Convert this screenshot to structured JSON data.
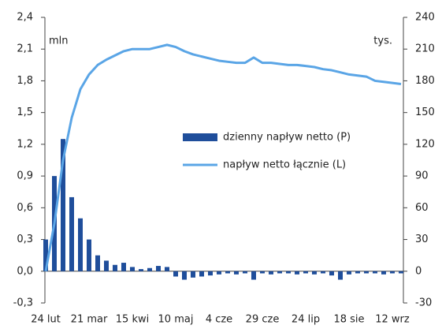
{
  "chart_data": {
    "type": "bar-line",
    "y_label": "mln",
    "y2_label": "tys.",
    "categories": [
      "24 lut",
      null,
      null,
      null,
      null,
      "21 mar",
      null,
      null,
      null,
      null,
      "15 kwi",
      null,
      null,
      null,
      null,
      "10 maj",
      null,
      null,
      null,
      null,
      "4 cze",
      null,
      null,
      null,
      null,
      "29 cze",
      null,
      null,
      null,
      null,
      "24 lip",
      null,
      null,
      null,
      null,
      "18 sie",
      null,
      null,
      null,
      null,
      "12 wrz",
      null
    ],
    "series": [
      {
        "name": "dzienny napływ netto (P)",
        "type": "bar",
        "axis": "y2",
        "color": "#1f4e9b",
        "values": [
          30,
          90,
          125,
          70,
          50,
          30,
          15,
          10,
          6,
          8,
          4,
          2,
          3,
          5,
          4,
          -5,
          -8,
          -6,
          -5,
          -4,
          -3,
          -2,
          -3,
          -2,
          -8,
          -2,
          -3,
          -2,
          -2,
          -3,
          -2,
          -3,
          -2,
          -4,
          -8,
          -3,
          -2,
          -2,
          -2,
          -3,
          -2,
          -2
        ]
      },
      {
        "name": "napływ netto łącznie (L)",
        "type": "line",
        "axis": "y",
        "color": "#5aa5e6",
        "values": [
          0.0,
          0.45,
          1.05,
          1.45,
          1.72,
          1.86,
          1.95,
          2.0,
          2.04,
          2.08,
          2.1,
          2.1,
          2.1,
          2.12,
          2.14,
          2.12,
          2.08,
          2.05,
          2.03,
          2.01,
          1.99,
          1.98,
          1.97,
          1.97,
          2.02,
          1.97,
          1.97,
          1.96,
          1.95,
          1.95,
          1.94,
          1.93,
          1.91,
          1.9,
          1.88,
          1.86,
          1.85,
          1.84,
          1.8,
          1.79,
          1.78,
          1.77
        ]
      }
    ],
    "ylim": [
      -0.3,
      2.4
    ],
    "yticks": [
      {
        "value": -0.3,
        "label": "-0,3"
      },
      {
        "value": 0,
        "label": "0,0"
      },
      {
        "value": 0.3,
        "label": "0,3"
      },
      {
        "value": 0.6,
        "label": "0,6"
      },
      {
        "value": 0.9,
        "label": "0,9"
      },
      {
        "value": 1.2,
        "label": "1,2"
      },
      {
        "value": 1.5,
        "label": "1,5"
      },
      {
        "value": 1.8,
        "label": "1,8"
      },
      {
        "value": 2.1,
        "label": "2,1"
      },
      {
        "value": 2.4,
        "label": "2,4"
      }
    ],
    "y2lim": [
      -30,
      240
    ],
    "y2ticks": [
      -30,
      0,
      30,
      60,
      90,
      120,
      150,
      180,
      210,
      240
    ]
  }
}
